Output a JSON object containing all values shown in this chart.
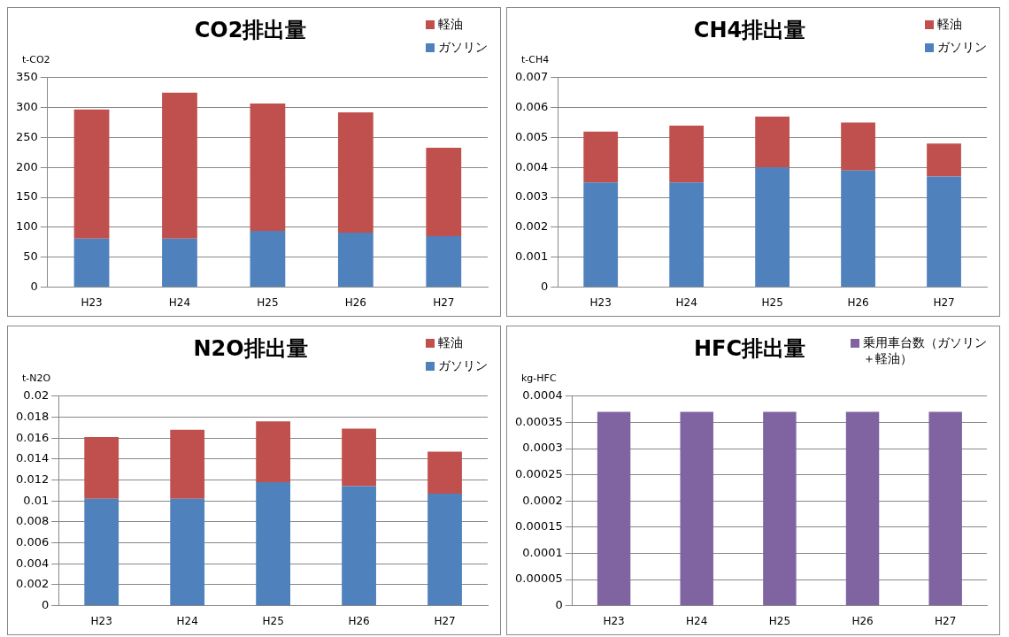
{
  "chart_data": [
    {
      "type": "bar",
      "title": "CO2排出量",
      "ylabel": "t-CO2",
      "categories": [
        "H23",
        "H24",
        "H25",
        "H26",
        "H27"
      ],
      "stacked": true,
      "series": [
        {
          "name": "ガソリン",
          "color": "#4f81bd",
          "values": [
            81,
            81,
            94,
            91,
            85
          ]
        },
        {
          "name": "軽油",
          "color": "#c0504d",
          "values": [
            216,
            244,
            213,
            201,
            148
          ]
        }
      ],
      "ylim": [
        0,
        350
      ],
      "yticks": [
        0,
        50,
        100,
        150,
        200,
        250,
        300,
        350
      ],
      "grid": "y",
      "legend": "top right"
    },
    {
      "type": "bar",
      "title": "CH4排出量",
      "ylabel": "t-CH4",
      "categories": [
        "H23",
        "H24",
        "H25",
        "H26",
        "H27"
      ],
      "stacked": true,
      "series": [
        {
          "name": "ガソリン",
          "color": "#4f81bd",
          "values": [
            0.0035,
            0.0035,
            0.004,
            0.0039,
            0.0037
          ]
        },
        {
          "name": "軽油",
          "color": "#c0504d",
          "values": [
            0.0017,
            0.0019,
            0.0017,
            0.0016,
            0.0011
          ]
        }
      ],
      "ylim": [
        0,
        0.007
      ],
      "yticks": [
        0,
        0.001,
        0.002,
        0.003,
        0.004,
        0.005,
        0.006,
        0.007
      ],
      "grid": "y",
      "legend": "top right"
    },
    {
      "type": "bar",
      "title": "N2O排出量",
      "ylabel": "t-N2O",
      "categories": [
        "H23",
        "H24",
        "H25",
        "H26",
        "H27"
      ],
      "stacked": true,
      "series": [
        {
          "name": "ガソリン",
          "color": "#4f81bd",
          "values": [
            0.0102,
            0.0102,
            0.0118,
            0.0114,
            0.0107
          ]
        },
        {
          "name": "軽油",
          "color": "#c0504d",
          "values": [
            0.0059,
            0.0066,
            0.0058,
            0.0055,
            0.004
          ]
        }
      ],
      "ylim": [
        0,
        0.02
      ],
      "yticks": [
        0,
        0.002,
        0.004,
        0.006,
        0.008,
        0.01,
        0.012,
        0.014,
        0.016,
        0.018,
        0.02
      ],
      "grid": "y",
      "legend": "top right"
    },
    {
      "type": "bar",
      "title": "HFC排出量",
      "ylabel": "kg-HFC",
      "categories": [
        "H23",
        "H24",
        "H25",
        "H26",
        "H27"
      ],
      "series": [
        {
          "name": "乗用車台数（ガソリン＋軽油）",
          "color": "#8064a2",
          "values": [
            0.00037,
            0.00037,
            0.00037,
            0.00037,
            0.00037
          ]
        }
      ],
      "ylim": [
        0,
        0.0004
      ],
      "yticks": [
        0,
        {
          "value": 5e-05,
          "label": "0.00005"
        },
        0.0001,
        0.00015,
        0.0002,
        0.00025,
        0.0003,
        0.00035,
        0.0004
      ],
      "grid": "y",
      "legend": "top right"
    }
  ]
}
